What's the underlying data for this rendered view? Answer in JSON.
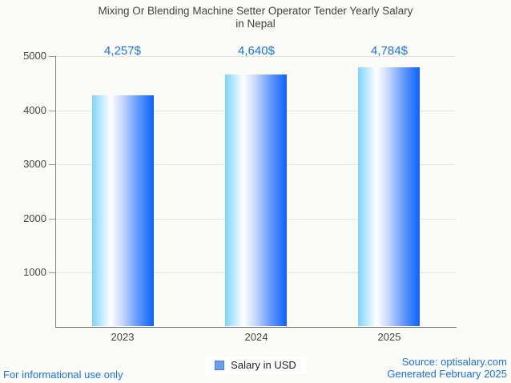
{
  "title": {
    "line1": "Mixing Or Blending Machine Setter Operator Tender Yearly Salary",
    "line2": "in Nepal"
  },
  "chart_data": {
    "type": "bar",
    "title": "Mixing Or Blending Machine Setter Operator Tender Yearly Salary in Nepal",
    "categories": [
      "2023",
      "2024",
      "2025"
    ],
    "values": [
      4257,
      4640,
      4784
    ],
    "value_labels": [
      "4,257$",
      "4,640$",
      "4,784$"
    ],
    "series_name": "Salary in USD",
    "xlabel": "",
    "ylabel": "",
    "ylim": [
      0,
      5000
    ],
    "yticks": [
      1000,
      2000,
      3000,
      4000,
      5000
    ],
    "grid": true,
    "legend_position": "bottom",
    "bar_gradient": [
      "#7ed4fd",
      "#ffffff",
      "#0b62fe"
    ]
  },
  "legend": {
    "label": "Salary in USD",
    "marker_color": "#6d9eeb",
    "marker_border": "#4a7de0"
  },
  "footer": {
    "left": "For informational use only",
    "source": "Source: optisalary.com",
    "generated": "Generated February 2025"
  },
  "colors": {
    "background": "#fbfbf8",
    "title_text": "#424242",
    "axis_text": "#444444",
    "value_label": "#1a73e8",
    "footer_link": "#1a73e8",
    "gridline": "#e5e5e2",
    "axis_line": "#6f6f6f"
  }
}
